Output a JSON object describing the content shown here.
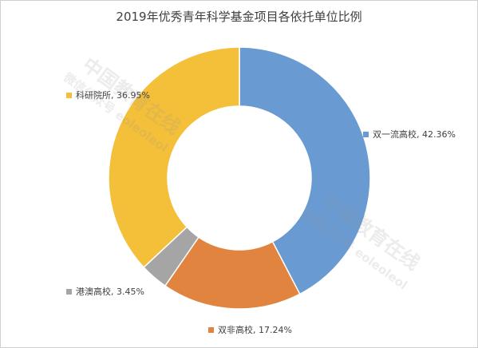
{
  "chart_data": {
    "type": "pie",
    "title": "2019年优秀青年科学基金项目各依托单位比例",
    "donut": true,
    "categories": [
      "双一流高校",
      "双非高校",
      "港澳高校",
      "科研院所"
    ],
    "values": [
      42.36,
      17.24,
      3.45,
      36.95
    ],
    "labels": [
      "双一流高校, 42.36%",
      "双非高校, 17.24%",
      "港澳高校, 3.45%",
      "科研院所, 36.95%"
    ],
    "colors": [
      "#6a9ad2",
      "#e0843f",
      "#a5a5a5",
      "#f4bf39"
    ]
  },
  "watermark": {
    "line1": "中国教育在线",
    "line2": "微信公众号 eoleoleol"
  }
}
